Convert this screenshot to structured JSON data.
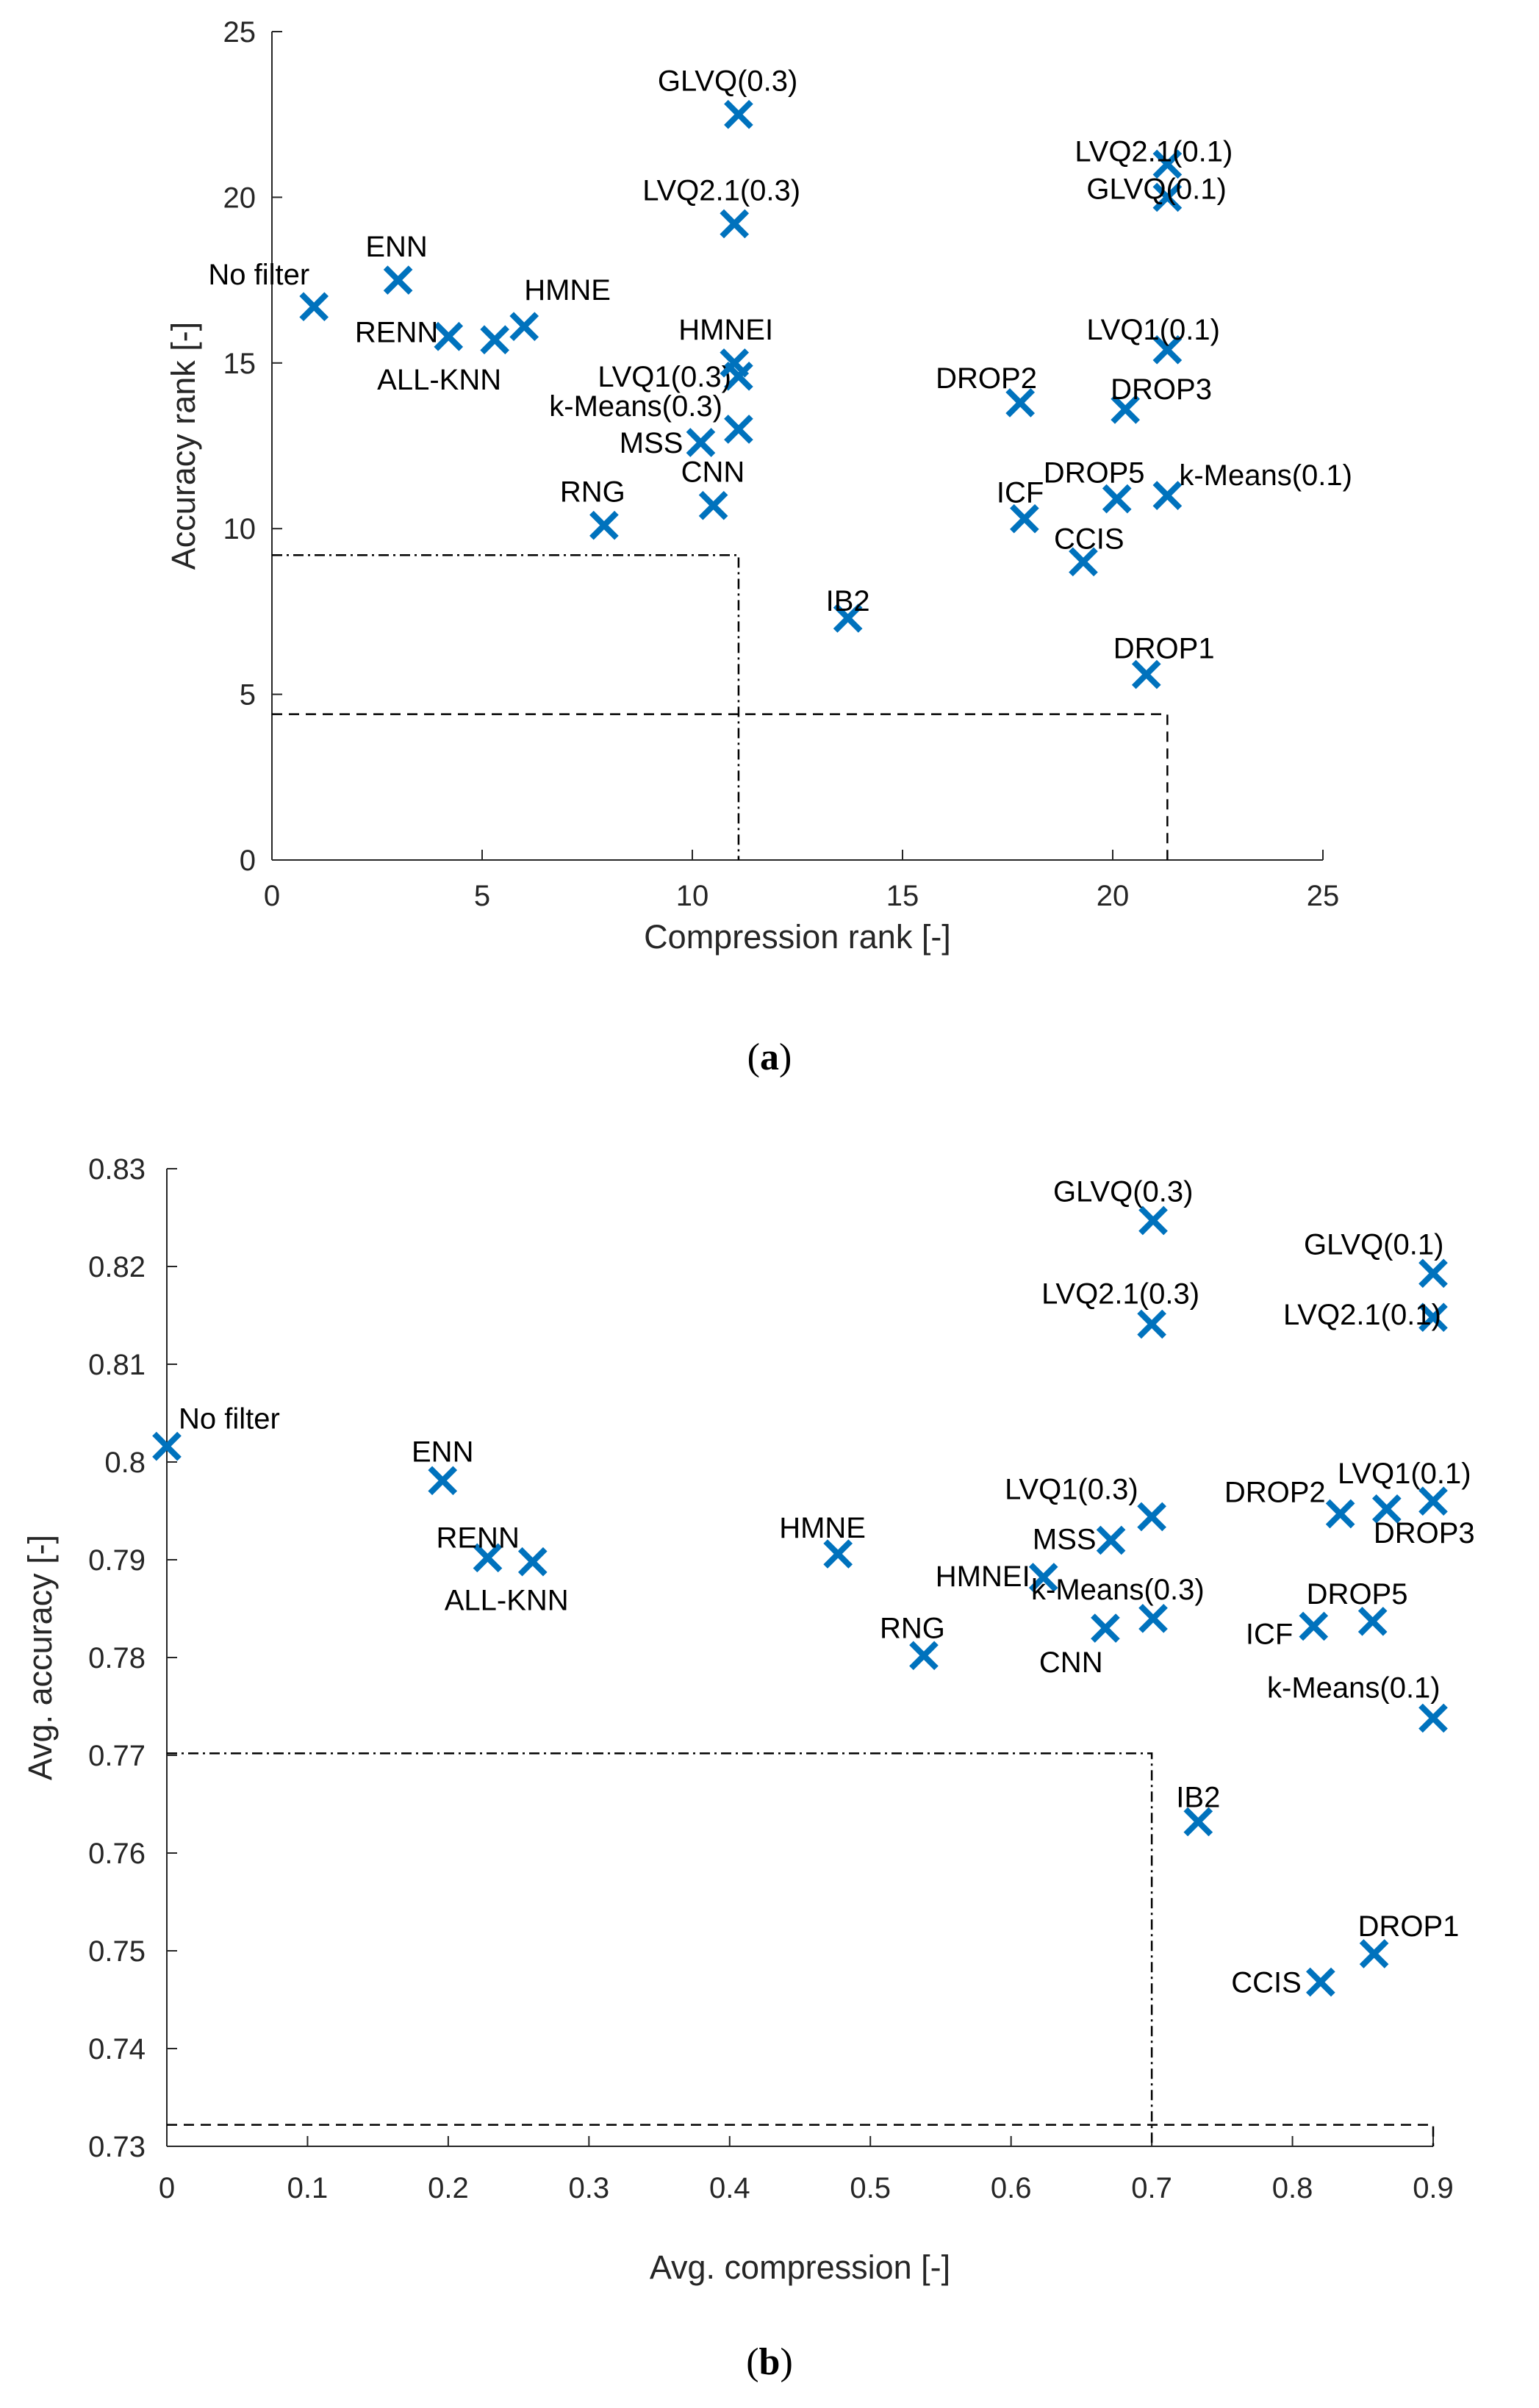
{
  "chart_data": [
    {
      "type": "scatter",
      "caption": "(a)",
      "caption_letter": "a",
      "xlabel": "Compression rank [-]",
      "ylabel": "Accuracy rank [-]",
      "xlim": [
        0,
        25
      ],
      "ylim": [
        0,
        25
      ],
      "xticks": [
        0,
        5,
        10,
        15,
        20,
        25
      ],
      "yticks": [
        0,
        5,
        10,
        15,
        20,
        25
      ],
      "marker_color": "#0072BD",
      "points": [
        {
          "label": "No filter",
          "x": 1.0,
          "y": 16.7
        },
        {
          "label": "ENN",
          "x": 3.0,
          "y": 17.5
        },
        {
          "label": "RENN",
          "x": 4.2,
          "y": 15.8
        },
        {
          "label": "ALL-KNN",
          "x": 5.3,
          "y": 15.7
        },
        {
          "label": "HMNE",
          "x": 6.0,
          "y": 16.1
        },
        {
          "label": "RNG",
          "x": 7.9,
          "y": 10.1
        },
        {
          "label": "CNN",
          "x": 10.5,
          "y": 10.7
        },
        {
          "label": "MSS",
          "x": 10.2,
          "y": 12.6
        },
        {
          "label": "k-Means(0.3)",
          "x": 11.1,
          "y": 13.0
        },
        {
          "label": "LVQ1(0.3)",
          "x": 11.1,
          "y": 14.6
        },
        {
          "label": "HMNEI",
          "x": 11.0,
          "y": 15.0
        },
        {
          "label": "LVQ2.1(0.3)",
          "x": 11.0,
          "y": 19.2
        },
        {
          "label": "GLVQ(0.3)",
          "x": 11.1,
          "y": 22.5
        },
        {
          "label": "IB2",
          "x": 13.7,
          "y": 7.3
        },
        {
          "label": "DROP2",
          "x": 17.8,
          "y": 13.8
        },
        {
          "label": "ICF",
          "x": 17.9,
          "y": 10.3
        },
        {
          "label": "CCIS",
          "x": 19.3,
          "y": 9.0
        },
        {
          "label": "DROP5",
          "x": 20.1,
          "y": 10.9
        },
        {
          "label": "DROP3",
          "x": 20.3,
          "y": 13.6
        },
        {
          "label": "DROP1",
          "x": 20.8,
          "y": 5.6
        },
        {
          "label": "k-Means(0.1)",
          "x": 21.3,
          "y": 11.0
        },
        {
          "label": "LVQ1(0.1)",
          "x": 21.3,
          "y": 15.4
        },
        {
          "label": "GLVQ(0.1)",
          "x": 21.3,
          "y": 20.0
        },
        {
          "label": "LVQ2.1(0.1)",
          "x": 21.3,
          "y": 21.0
        }
      ],
      "reference_lines": [
        {
          "style": "dash-dot",
          "x": 11.1,
          "y": 9.2
        },
        {
          "style": "dash",
          "x": 21.3,
          "y": 4.4
        }
      ]
    },
    {
      "type": "scatter",
      "caption": "(b)",
      "caption_letter": "b",
      "xlabel": "Avg. compression [-]",
      "ylabel": "Avg. accuracy [-]",
      "xlim": [
        0,
        0.9
      ],
      "ylim": [
        0.73,
        0.83
      ],
      "xticks": [
        "0",
        "0.1",
        "0.2",
        "0.3",
        "0.4",
        "0.5",
        "0.6",
        "0.7",
        "0.8",
        "0.9"
      ],
      "yticks": [
        "0.73",
        "0.74",
        "0.75",
        "0.76",
        "0.77",
        "0.78",
        "0.79",
        "0.8",
        "0.81",
        "0.82",
        "0.83"
      ],
      "marker_color": "#0072BD",
      "points": [
        {
          "label": "No filter",
          "x": 0.0,
          "y": 0.8016
        },
        {
          "label": "ENN",
          "x": 0.196,
          "y": 0.7981
        },
        {
          "label": "RENN",
          "x": 0.228,
          "y": 0.7902
        },
        {
          "label": "ALL-KNN",
          "x": 0.26,
          "y": 0.7898
        },
        {
          "label": "HMNE",
          "x": 0.477,
          "y": 0.7906
        },
        {
          "label": "RNG",
          "x": 0.538,
          "y": 0.7802
        },
        {
          "label": "HMNEI",
          "x": 0.623,
          "y": 0.7882
        },
        {
          "label": "CNN",
          "x": 0.667,
          "y": 0.783
        },
        {
          "label": "MSS",
          "x": 0.671,
          "y": 0.792
        },
        {
          "label": "k-Means(0.3)",
          "x": 0.701,
          "y": 0.784
        },
        {
          "label": "LVQ1(0.3)",
          "x": 0.7,
          "y": 0.7944
        },
        {
          "label": "LVQ2.1(0.3)",
          "x": 0.7,
          "y": 0.8141
        },
        {
          "label": "GLVQ(0.3)",
          "x": 0.701,
          "y": 0.8247
        },
        {
          "label": "IB2",
          "x": 0.733,
          "y": 0.7632
        },
        {
          "label": "CCIS",
          "x": 0.82,
          "y": 0.7468
        },
        {
          "label": "ICF",
          "x": 0.815,
          "y": 0.7832
        },
        {
          "label": "DROP1",
          "x": 0.858,
          "y": 0.7497
        },
        {
          "label": "DROP5",
          "x": 0.857,
          "y": 0.7837
        },
        {
          "label": "DROP2",
          "x": 0.834,
          "y": 0.7947
        },
        {
          "label": "DROP3",
          "x": 0.867,
          "y": 0.7952
        },
        {
          "label": "LVQ1(0.1)",
          "x": 0.9,
          "y": 0.796
        },
        {
          "label": "k-Means(0.1)",
          "x": 0.9,
          "y": 0.7738
        },
        {
          "label": "LVQ2.1(0.1)",
          "x": 0.9,
          "y": 0.8148
        },
        {
          "label": "GLVQ(0.1)",
          "x": 0.9,
          "y": 0.8193
        }
      ],
      "reference_lines": [
        {
          "style": "dash-dot",
          "x": 0.7,
          "y": 0.7702
        },
        {
          "style": "dash",
          "x": 0.9,
          "y": 0.7322
        }
      ]
    }
  ]
}
